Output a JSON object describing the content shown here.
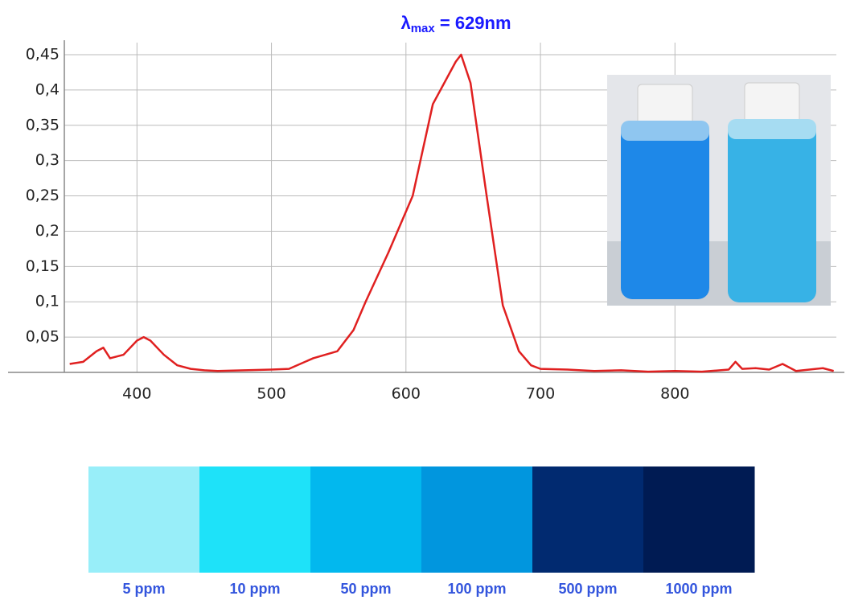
{
  "chart_data": {
    "type": "line",
    "title": {
      "symbol": "λ",
      "subscript": "max",
      "text": " = 629nm"
    },
    "x": [
      350,
      360,
      370,
      375,
      380,
      390,
      400,
      405,
      410,
      420,
      430,
      440,
      450,
      460,
      480,
      500,
      513,
      531,
      549,
      561,
      570,
      587,
      605,
      620,
      637,
      641,
      648,
      660,
      672,
      684,
      693,
      700,
      720,
      740,
      760,
      780,
      800,
      820,
      840,
      845,
      850,
      860,
      870,
      880,
      890,
      900,
      910,
      918
    ],
    "series": [
      {
        "name": null,
        "color": "#e02020",
        "values": [
          0.012,
          0.015,
          0.03,
          0.035,
          0.02,
          0.025,
          0.045,
          0.05,
          0.045,
          0.025,
          0.01,
          0.005,
          0.003,
          0.002,
          0.003,
          0.004,
          0.005,
          0.02,
          0.03,
          0.06,
          0.1,
          0.17,
          0.25,
          0.38,
          0.44,
          0.45,
          0.41,
          0.25,
          0.095,
          0.03,
          0.01,
          0.005,
          0.004,
          0.002,
          0.003,
          0.001,
          0.002,
          0.001,
          0.004,
          0.015,
          0.005,
          0.006,
          0.004,
          0.012,
          0.002,
          0.004,
          0.006,
          0.002
        ]
      }
    ],
    "xlim": [
      346,
      920
    ],
    "ylim": [
      0,
      0.45
    ],
    "xticks": [
      400,
      500,
      600,
      700,
      800
    ],
    "yticks": [
      {
        "value": 0.05,
        "label": "0,05"
      },
      {
        "value": 0.1,
        "label": "0,1"
      },
      {
        "value": 0.15,
        "label": "0,15"
      },
      {
        "value": 0.2,
        "label": "0,2"
      },
      {
        "value": 0.25,
        "label": "0,25"
      },
      {
        "value": 0.3,
        "label": "0,3"
      },
      {
        "value": 0.35,
        "label": "0,35"
      },
      {
        "value": 0.4,
        "label": "0,4"
      },
      {
        "value": 0.45,
        "label": "0,45"
      }
    ],
    "grid": true
  },
  "color_scale": {
    "items": [
      {
        "label": "5 ppm",
        "color": "#98eef9"
      },
      {
        "label": "10 ppm",
        "color": "#1ee2f9"
      },
      {
        "label": "50 ppm",
        "color": "#02b8ee"
      },
      {
        "label": "100 ppm",
        "color": "#0196de"
      },
      {
        "label": "500 ppm",
        "color": "#012a70"
      },
      {
        "label": "1000 ppm",
        "color": "#001b53"
      }
    ]
  }
}
